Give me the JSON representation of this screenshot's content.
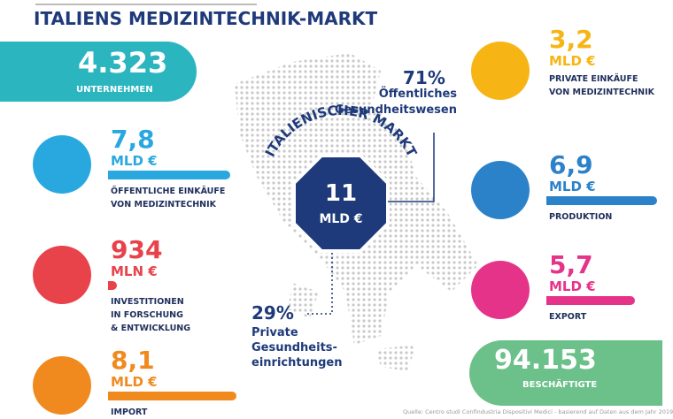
{
  "title": "ITALIENS MEDIZINTECHNIK-MARKT",
  "companies": {
    "value": "4.323",
    "label": "UNTERNEHMEN"
  },
  "employees": {
    "value": "94.153",
    "label": "BESCHÄFTIGTE"
  },
  "left_items": [
    {
      "value": "7,8",
      "unit": "MLD €",
      "label": [
        "ÖFFENTLICHE EINKÄUFE",
        "VON MEDIZINTECHNIK"
      ]
    },
    {
      "value": "934",
      "unit": "MLN €",
      "label": [
        "INVESTITIONEN",
        "IN FORSCHUNG",
        "& ENTWICKLUNG"
      ]
    },
    {
      "value": "8,1",
      "unit": "MLD €",
      "label": [
        "IMPORT"
      ]
    }
  ],
  "right_items": [
    {
      "value": "3,2",
      "unit": "MLD €",
      "label": [
        "PRIVATE EINKÄUFE",
        "VON MEDIZINTECHNIK"
      ]
    },
    {
      "value": "6,9",
      "unit": "MLD €",
      "label": [
        "PRODUKTION"
      ]
    },
    {
      "value": "5,7",
      "unit": "MLD €",
      "label": [
        "EXPORT"
      ]
    }
  ],
  "center": {
    "arc": "ITALIENISCHER MARKT",
    "value": "11",
    "unit": "MLD €"
  },
  "public": {
    "percent": "71%",
    "label": [
      "Öffentliches",
      "Gesundheitswesen"
    ]
  },
  "private": {
    "percent": "29%",
    "label": [
      "Private",
      "Gesundheits-",
      "einrichtungen"
    ]
  },
  "source": "Quelle: Centro studi Confindustria Dispositivi Medici - basierend auf Daten aus dem Jahr 2019"
}
